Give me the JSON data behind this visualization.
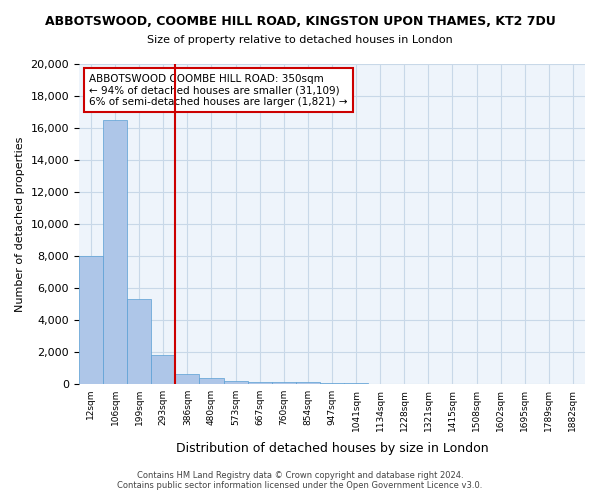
{
  "title": "ABBOTSWOOD, COOMBE HILL ROAD, KINGSTON UPON THAMES, KT2 7DU",
  "subtitle": "Size of property relative to detached houses in London",
  "xlabel": "Distribution of detached houses by size in London",
  "ylabel": "Number of detached properties",
  "bin_labels": [
    "12sqm",
    "106sqm",
    "199sqm",
    "293sqm",
    "386sqm",
    "480sqm",
    "573sqm",
    "667sqm",
    "760sqm",
    "854sqm",
    "947sqm",
    "1041sqm",
    "1134sqm",
    "1228sqm",
    "1321sqm",
    "1415sqm",
    "1508sqm",
    "1602sqm",
    "1695sqm",
    "1789sqm",
    "1882sqm"
  ],
  "bar_heights": [
    8000,
    16500,
    5300,
    1800,
    600,
    350,
    200,
    150,
    100,
    100,
    50,
    30,
    20,
    15,
    10,
    8,
    5,
    4,
    3,
    2,
    1
  ],
  "bar_color": "#aec6e8",
  "bar_edge_color": "#5a9fd4",
  "grid_color": "#c8d8e8",
  "red_line_index": 4,
  "annotation_title": "ABBOTSWOOD COOMBE HILL ROAD: 350sqm",
  "annotation_line1": "← 94% of detached houses are smaller (31,109)",
  "annotation_line2": "6% of semi-detached houses are larger (1,821) →",
  "annotation_box_color": "#ffffff",
  "annotation_border_color": "#cc0000",
  "footer_line1": "Contains HM Land Registry data © Crown copyright and database right 2024.",
  "footer_line2": "Contains public sector information licensed under the Open Government Licence v3.0.",
  "ylim": [
    0,
    20000
  ],
  "yticks": [
    0,
    2000,
    4000,
    6000,
    8000,
    10000,
    12000,
    14000,
    16000,
    18000,
    20000
  ],
  "background_color": "#eef4fb"
}
